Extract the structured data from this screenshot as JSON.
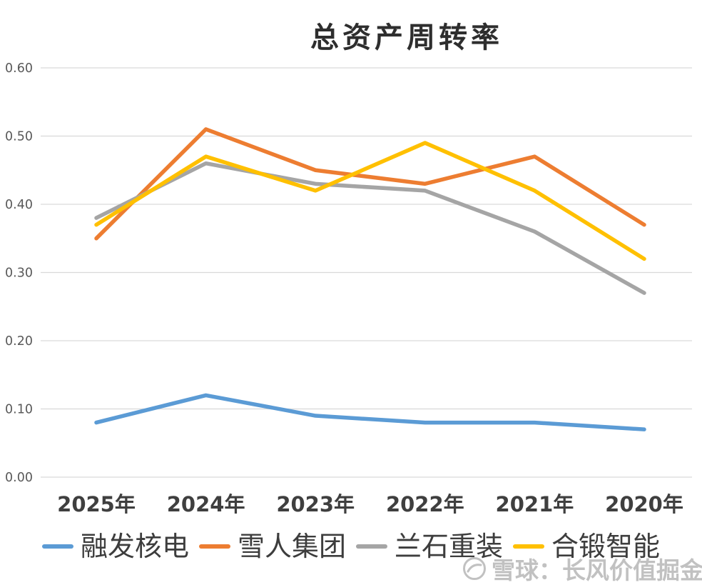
{
  "title": "总资产周转率",
  "chart_data": {
    "type": "line",
    "categories": [
      "2025年",
      "2024年",
      "2023年",
      "2022年",
      "2021年",
      "2020年"
    ],
    "series": [
      {
        "name": "融发核电",
        "color": "#5B9BD5",
        "values": [
          0.08,
          0.12,
          0.09,
          0.08,
          0.08,
          0.07
        ]
      },
      {
        "name": "雪人集团",
        "color": "#ED7D31",
        "values": [
          0.35,
          0.51,
          0.45,
          0.43,
          0.47,
          0.37
        ]
      },
      {
        "name": "兰石重装",
        "color": "#A5A5A5",
        "values": [
          0.38,
          0.46,
          0.43,
          0.42,
          0.36,
          0.27
        ]
      },
      {
        "name": "合锻智能",
        "color": "#FFC000",
        "values": [
          0.37,
          0.47,
          0.42,
          0.49,
          0.42,
          0.32
        ]
      }
    ],
    "title": "总资产周转率",
    "xlabel": "",
    "ylabel": "",
    "ylim": [
      0,
      0.6
    ],
    "y_ticks": [
      "0.00",
      "0.10",
      "0.20",
      "0.30",
      "0.40",
      "0.50",
      "0.60"
    ],
    "grid": true,
    "legend_position": "bottom"
  },
  "colors": {
    "grid": "#d9d9d9",
    "tick_label": "#595959",
    "axis_label": "#3f3f3f",
    "title": "#2e2e2e",
    "legend_label": "#3d3d3d",
    "watermark": "#8f8f8f"
  },
  "watermark": {
    "text": "雪球：长风价值掘金"
  }
}
